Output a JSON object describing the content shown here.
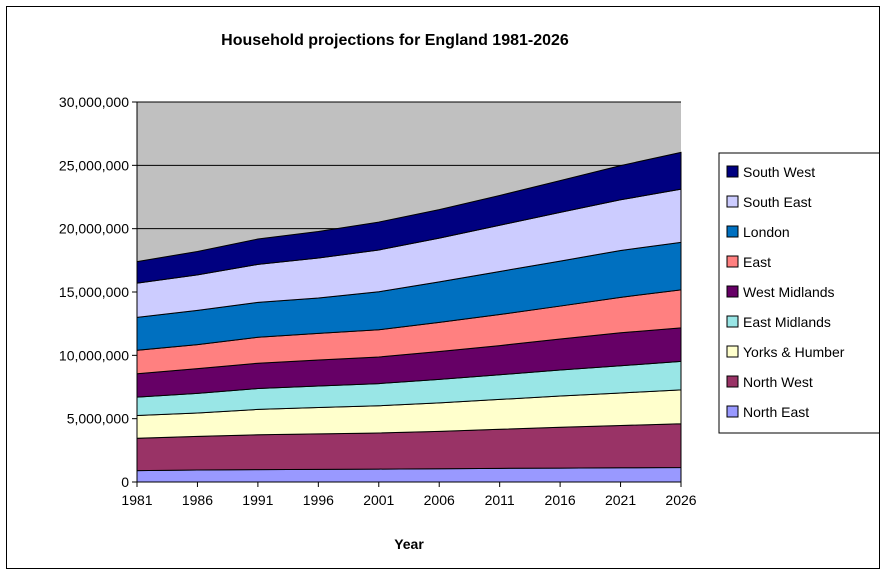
{
  "chart_data": {
    "type": "area",
    "stacked": true,
    "title": "Household projections for England 1981-2026",
    "xlabel": "Year",
    "ylabel": "",
    "categories": [
      "1981",
      "1986",
      "1991",
      "1996",
      "2001",
      "2006",
      "2011",
      "2016",
      "2021",
      "2026"
    ],
    "ylim": [
      0,
      30000000
    ],
    "yticks": [
      0,
      5000000,
      10000000,
      15000000,
      20000000,
      25000000,
      30000000
    ],
    "ytick_labels": [
      "0",
      "5,000,000",
      "10,000,000",
      "15,000,000",
      "20,000,000",
      "25,000,000",
      "30,000,000"
    ],
    "grid": "horizontal",
    "plot_background": "#c0c0c0",
    "legend_position": "right",
    "series": [
      {
        "name": "North East",
        "color": "#9999ff",
        "values": [
          900000,
          950000,
          980000,
          1000000,
          1020000,
          1050000,
          1080000,
          1100000,
          1120000,
          1140000
        ]
      },
      {
        "name": "North West",
        "color": "#993366",
        "values": [
          2550000,
          2650000,
          2750000,
          2800000,
          2850000,
          2950000,
          3080000,
          3220000,
          3340000,
          3460000
        ]
      },
      {
        "name": "Yorks & Humber",
        "color": "#ffffcc",
        "values": [
          1800000,
          1850000,
          2000000,
          2080000,
          2150000,
          2250000,
          2360000,
          2470000,
          2570000,
          2670000
        ]
      },
      {
        "name": "East Midlands",
        "color": "#99e6e6",
        "values": [
          1450000,
          1550000,
          1650000,
          1700000,
          1750000,
          1850000,
          1950000,
          2050000,
          2150000,
          2250000
        ]
      },
      {
        "name": "West Midlands",
        "color": "#660066",
        "values": [
          1850000,
          1950000,
          2000000,
          2050000,
          2100000,
          2200000,
          2300000,
          2450000,
          2600000,
          2650000
        ]
      },
      {
        "name": "East",
        "color": "#ff8080",
        "values": [
          1850000,
          1900000,
          2050000,
          2100000,
          2150000,
          2300000,
          2450000,
          2600000,
          2800000,
          3000000
        ]
      },
      {
        "name": "London",
        "color": "#0070c0",
        "values": [
          2600000,
          2700000,
          2750000,
          2800000,
          3000000,
          3200000,
          3400000,
          3550000,
          3700000,
          3750000
        ]
      },
      {
        "name": "South East",
        "color": "#ccccff",
        "values": [
          2700000,
          2800000,
          3000000,
          3150000,
          3300000,
          3450000,
          3650000,
          3850000,
          4000000,
          4200000
        ]
      },
      {
        "name": "South West",
        "color": "#000080",
        "values": [
          1700000,
          1850000,
          2000000,
          2100000,
          2200000,
          2250000,
          2350000,
          2500000,
          2700000,
          2900000
        ]
      }
    ]
  }
}
